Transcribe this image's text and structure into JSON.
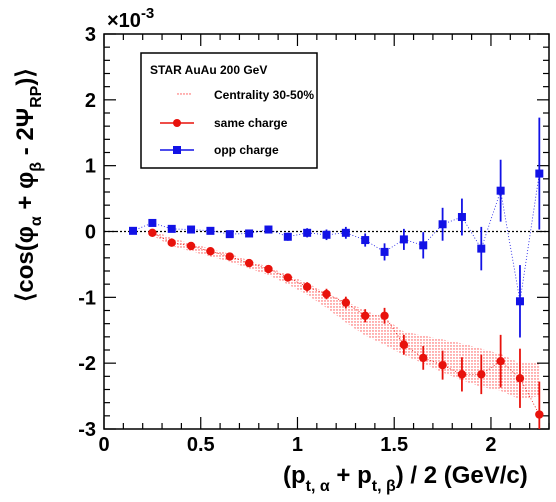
{
  "chart_data": {
    "type": "scatter",
    "xlabel": "(p_{t,α} + p_{t,β}) / 2  (GeV/c)",
    "ylabel": "⟨cos(φ_α + φ_β - 2Ψ_RP)⟩",
    "xlim": [
      0.0,
      2.3
    ],
    "ylim": [
      -3,
      3
    ],
    "y_scale_label": "×10^-3",
    "x_ticks": [
      "0",
      "0.5",
      "1",
      "1.5",
      "2"
    ],
    "x_tick_values": [
      0,
      0.5,
      1,
      1.5,
      2
    ],
    "y_ticks": [
      "-3",
      "-2",
      "-1",
      "0",
      "1",
      "2",
      "3"
    ],
    "y_tick_values": [
      -3,
      -2,
      -1,
      0,
      1,
      2,
      3
    ],
    "legend_title": "STAR  AuAu 200 GeV",
    "legend_position": "top-left",
    "series": [
      {
        "name": "Centrality 30-50%",
        "kind": "band",
        "color": "#ff0000",
        "x": [
          0.25,
          0.35,
          0.45,
          0.55,
          0.65,
          0.75,
          0.85,
          0.95,
          1.05,
          1.15,
          1.25,
          1.35,
          1.45,
          1.55,
          1.65,
          1.75,
          1.85,
          1.95,
          2.05,
          2.15,
          2.25
        ],
        "low": [
          -0.06,
          -0.22,
          -0.3,
          -0.38,
          -0.46,
          -0.56,
          -0.66,
          -0.8,
          -0.96,
          -1.16,
          -1.38,
          -1.58,
          -1.72,
          -1.88,
          -2.0,
          -2.14,
          -2.26,
          -2.36,
          -2.42,
          -2.55,
          -2.5
        ],
        "high": [
          0.02,
          -0.1,
          -0.18,
          -0.26,
          -0.34,
          -0.44,
          -0.54,
          -0.66,
          -0.78,
          -0.94,
          -1.06,
          -1.2,
          -1.32,
          -1.52,
          -1.58,
          -1.64,
          -1.7,
          -1.78,
          -1.86,
          -2.0,
          -2.0
        ]
      },
      {
        "name": "same charge",
        "color": "#e8120c",
        "marker": "circle",
        "x": [
          0.25,
          0.35,
          0.45,
          0.55,
          0.65,
          0.75,
          0.85,
          0.95,
          1.05,
          1.15,
          1.25,
          1.35,
          1.45,
          1.55,
          1.65,
          1.75,
          1.85,
          1.95,
          2.05,
          2.15,
          2.25
        ],
        "y": [
          -0.02,
          -0.17,
          -0.22,
          -0.3,
          -0.38,
          -0.48,
          -0.57,
          -0.7,
          -0.84,
          -0.95,
          -1.08,
          -1.28,
          -1.28,
          -1.72,
          -1.92,
          -2.03,
          -2.17,
          -2.17,
          -1.97,
          -2.23,
          -2.78
        ],
        "err": [
          0.03,
          0.03,
          0.04,
          0.04,
          0.05,
          0.05,
          0.06,
          0.06,
          0.07,
          0.08,
          0.09,
          0.1,
          0.12,
          0.15,
          0.18,
          0.22,
          0.26,
          0.3,
          0.4,
          0.45,
          0.5
        ]
      },
      {
        "name": "opp charge",
        "color": "#1212e6",
        "marker": "square",
        "x": [
          0.15,
          0.25,
          0.35,
          0.45,
          0.55,
          0.65,
          0.75,
          0.85,
          0.95,
          1.05,
          1.15,
          1.25,
          1.35,
          1.45,
          1.55,
          1.65,
          1.75,
          1.85,
          1.95,
          2.05,
          2.15,
          2.25
        ],
        "y": [
          0.01,
          0.13,
          0.04,
          0.03,
          0.01,
          -0.04,
          -0.03,
          0.03,
          -0.08,
          -0.02,
          -0.05,
          -0.02,
          -0.13,
          -0.31,
          -0.12,
          -0.21,
          0.11,
          0.22,
          -0.26,
          0.62,
          -1.06,
          0.88
        ],
        "err": [
          0.02,
          0.03,
          0.04,
          0.04,
          0.04,
          0.05,
          0.05,
          0.06,
          0.06,
          0.07,
          0.08,
          0.09,
          0.1,
          0.13,
          0.16,
          0.2,
          0.25,
          0.28,
          0.33,
          0.47,
          0.55,
          0.85
        ]
      }
    ],
    "reference_line": {
      "y": 0,
      "style": "dotted"
    }
  }
}
